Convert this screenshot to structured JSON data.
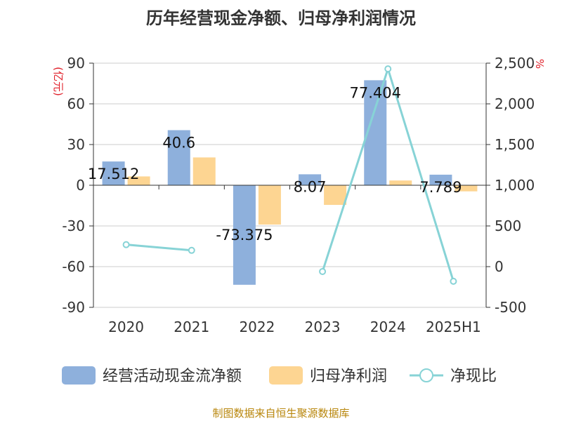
{
  "title": "历年经营现金净额、归母净利润情况",
  "source_note": "制图数据来自恒生聚源数据库",
  "colors": {
    "bar1": "#8eb0dc",
    "bar2": "#fdd592",
    "line": "#87d3d6",
    "grid": "#cccccc",
    "axis_label": "#e0202a",
    "text": "#333333"
  },
  "chart_data": {
    "type": "bar",
    "title": "历年经营现金净额、归母净利润情况",
    "ylabel": "(亿元)",
    "y2label": "%",
    "categories": [
      "2020",
      "2021",
      "2022",
      "2023",
      "2024",
      "2025H1"
    ],
    "ylim": [
      -90,
      90
    ],
    "yticks": [
      "-90",
      "-60",
      "-30",
      "0",
      "30",
      "60",
      "90"
    ],
    "y2lim": [
      -500,
      2500
    ],
    "y2ticks": [
      "-500",
      "0",
      "500",
      "1,000",
      "1,500",
      "2,000",
      "2,500"
    ],
    "grid": true,
    "legend_position": "bottom",
    "series": [
      {
        "name": "经营活动现金流净额",
        "kind": "bar",
        "axis": "left",
        "values": [
          17.512,
          40.6,
          -73.375,
          8.07,
          77.404,
          7.789
        ],
        "labels": [
          "17.512",
          "40.6",
          "-73.375",
          "8.07",
          "77.404",
          "7.789"
        ]
      },
      {
        "name": "归母净利润",
        "kind": "bar",
        "axis": "left",
        "values": [
          6.5,
          20.5,
          -29.0,
          -14.5,
          3.5,
          -4.5
        ]
      },
      {
        "name": "净现比",
        "kind": "line",
        "axis": "right",
        "values": [
          270,
          200,
          null,
          -60,
          2430,
          -180
        ]
      }
    ]
  }
}
